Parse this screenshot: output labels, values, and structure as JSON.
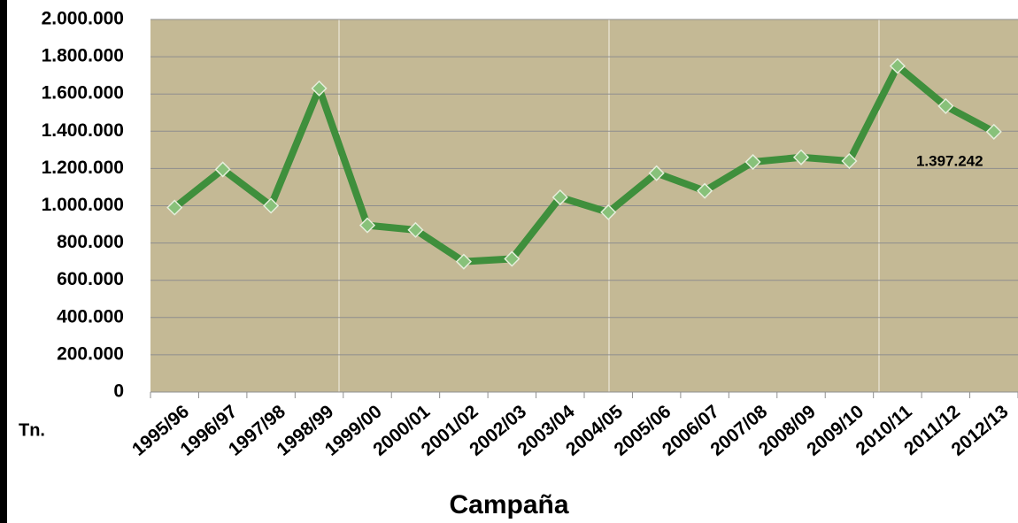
{
  "chart_data": {
    "type": "line",
    "x_label": "Campaña",
    "y_label": "Tn.",
    "categories": [
      "1995/96",
      "1996/97",
      "1997/98",
      "1998/99",
      "1999/00",
      "2000/01",
      "2001/02",
      "2002/03",
      "2003/04",
      "2004/05",
      "2005/06",
      "2006/07",
      "2007/08",
      "2008/09",
      "2009/10",
      "2010/11",
      "2011/12",
      "2012/13"
    ],
    "series": [
      {
        "name": "Tn.",
        "color": "#3f8f3c",
        "values": [
          990000,
          1195000,
          1000000,
          1630000,
          895000,
          870000,
          700000,
          715000,
          1045000,
          965000,
          1175000,
          1080000,
          1235000,
          1260000,
          1240000,
          1750000,
          1535000,
          1397242
        ],
        "value_labels": [
          null,
          null,
          null,
          null,
          null,
          null,
          null,
          null,
          null,
          null,
          null,
          null,
          null,
          null,
          null,
          null,
          null,
          "1.397.242"
        ]
      }
    ],
    "ylim": [
      0,
      2000000
    ],
    "yticks": [
      0,
      {
        "value": 200000,
        "label": "200.000"
      },
      {
        "value": 400000,
        "label": "400.000"
      },
      {
        "value": 600000,
        "label": "600.000"
      },
      {
        "value": 800000,
        "label": "800.000"
      },
      {
        "value": 1000000,
        "label": "1.000.000"
      },
      {
        "value": 1200000,
        "label": "1.200.000"
      },
      {
        "value": 1400000,
        "label": "1.400.000"
      },
      {
        "value": 1600000,
        "label": "1.600.000"
      },
      {
        "value": 1800000,
        "label": "1.800.000"
      },
      {
        "value": 2000000,
        "label": "2.000.000"
      }
    ],
    "grid": true
  }
}
